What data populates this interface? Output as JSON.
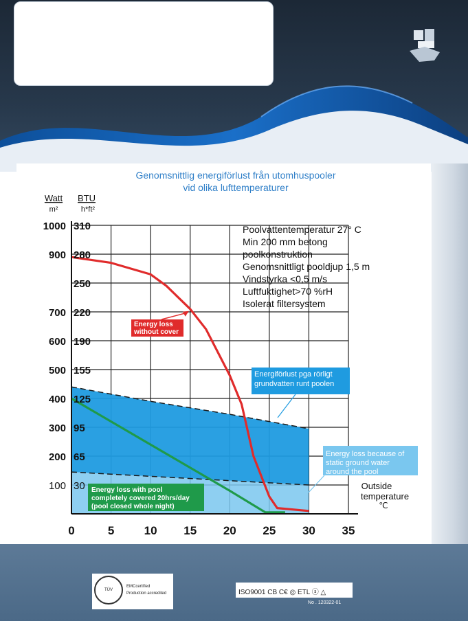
{
  "chart_data": {
    "type": "line",
    "title": "Genomsnittlig energiförlust från utomhuspooler",
    "subtitle": "vid olika lufttemperaturer",
    "xlabel": "Outside temperature",
    "xlabel_line1": "Outside",
    "xlabel_line2": "temperature",
    "xunit": "℃",
    "ylabel_watt": "Watt",
    "ylabel_watt_unit": "m²",
    "ylabel_btu": "BTU",
    "ylabel_btu_unit": "h*ft²",
    "xlim": [
      0,
      35
    ],
    "ylim": [
      0,
      1000
    ],
    "grid": true,
    "x_ticks": [
      "0",
      "5",
      "10",
      "15",
      "20",
      "25",
      "30",
      "35"
    ],
    "watt_ticks": [
      {
        "v": 100,
        "label": "100"
      },
      {
        "v": 200,
        "label": "200"
      },
      {
        "v": 300,
        "label": "300"
      },
      {
        "v": 400,
        "label": "400"
      },
      {
        "v": 500,
        "label": "500"
      },
      {
        "v": 600,
        "label": "600"
      },
      {
        "v": 700,
        "label": "700"
      },
      {
        "v": 900,
        "label": "900"
      },
      {
        "v": 1000,
        "label": "1000"
      }
    ],
    "btu_ticks": [
      {
        "v": 100,
        "label": "30"
      },
      {
        "v": 200,
        "label": "65"
      },
      {
        "v": 300,
        "label": "95"
      },
      {
        "v": 400,
        "label": "125"
      },
      {
        "v": 500,
        "label": "155"
      },
      {
        "v": 600,
        "label": "190"
      },
      {
        "v": 700,
        "label": "220"
      },
      {
        "v": 800,
        "label": "250"
      },
      {
        "v": 900,
        "label": "280"
      },
      {
        "v": 1000,
        "label": "310"
      }
    ],
    "series": [
      {
        "name": "Energy loss without cover",
        "color": "#e02b2b",
        "points": [
          [
            0,
            890
          ],
          [
            5,
            870
          ],
          [
            10,
            830
          ],
          [
            12,
            790
          ],
          [
            15,
            710
          ],
          [
            17,
            640
          ],
          [
            20,
            480
          ],
          [
            21.5,
            380
          ],
          [
            23,
            200
          ],
          [
            25,
            60
          ],
          [
            26,
            20
          ],
          [
            30,
            10
          ]
        ]
      },
      {
        "name": "Energy loss with pool completely covered 20hrs/day (pool closed whole night)",
        "color": "#1f9a4a",
        "points": [
          [
            0,
            400
          ],
          [
            10,
            240
          ],
          [
            20,
            80
          ],
          [
            24.5,
            5
          ],
          [
            27,
            5
          ]
        ]
      }
    ],
    "bands": [
      {
        "name": "Energiförlust pga rörligt grundvatten runt poolen",
        "color": "#1f9be0",
        "upper": [
          [
            0,
            440
          ],
          [
            10,
            390
          ],
          [
            20,
            345
          ],
          [
            25,
            320
          ],
          [
            30,
            295
          ]
        ],
        "lower": [
          [
            0,
            145
          ],
          [
            10,
            130
          ],
          [
            20,
            115
          ],
          [
            30,
            100
          ]
        ]
      },
      {
        "name": "Energy loss because of static ground water around the pool",
        "color": "#7ac7ef",
        "upper": [
          [
            0,
            145
          ],
          [
            10,
            130
          ],
          [
            20,
            115
          ],
          [
            30,
            100
          ]
        ],
        "lower": [
          [
            0,
            0
          ],
          [
            30,
            0
          ]
        ]
      }
    ],
    "annotations": {
      "conditions": [
        "Poolvattentemperatur 27° C",
        "Min 200 mm betong",
        "poolkonstruktion",
        "Genomsnittligt pooldjup 1,5 m",
        "Vindstyrka <0,5 m/s",
        "Luftfuktighet>70 %rH",
        "Isolerat filtersystem"
      ],
      "red_label": [
        "Energy loss",
        "without cover"
      ],
      "blue_label": [
        "Energiförlust pga rörligt",
        "grundvatten runt poolen"
      ],
      "light_label": [
        "Energy loss because of",
        "static ground water",
        "around the pool"
      ],
      "green_label": [
        "Energy loss with pool",
        "completely covered  20hrs/day",
        "(pool closed whole night)"
      ]
    }
  },
  "certificates": {
    "left_lines": [
      "EMCcertified",
      "Production accredited"
    ],
    "left_seal": "TÜV",
    "right_marks": "ISO9001 CB C€ ◎ ETL ⓢ △",
    "number": "No . 120322-01"
  }
}
